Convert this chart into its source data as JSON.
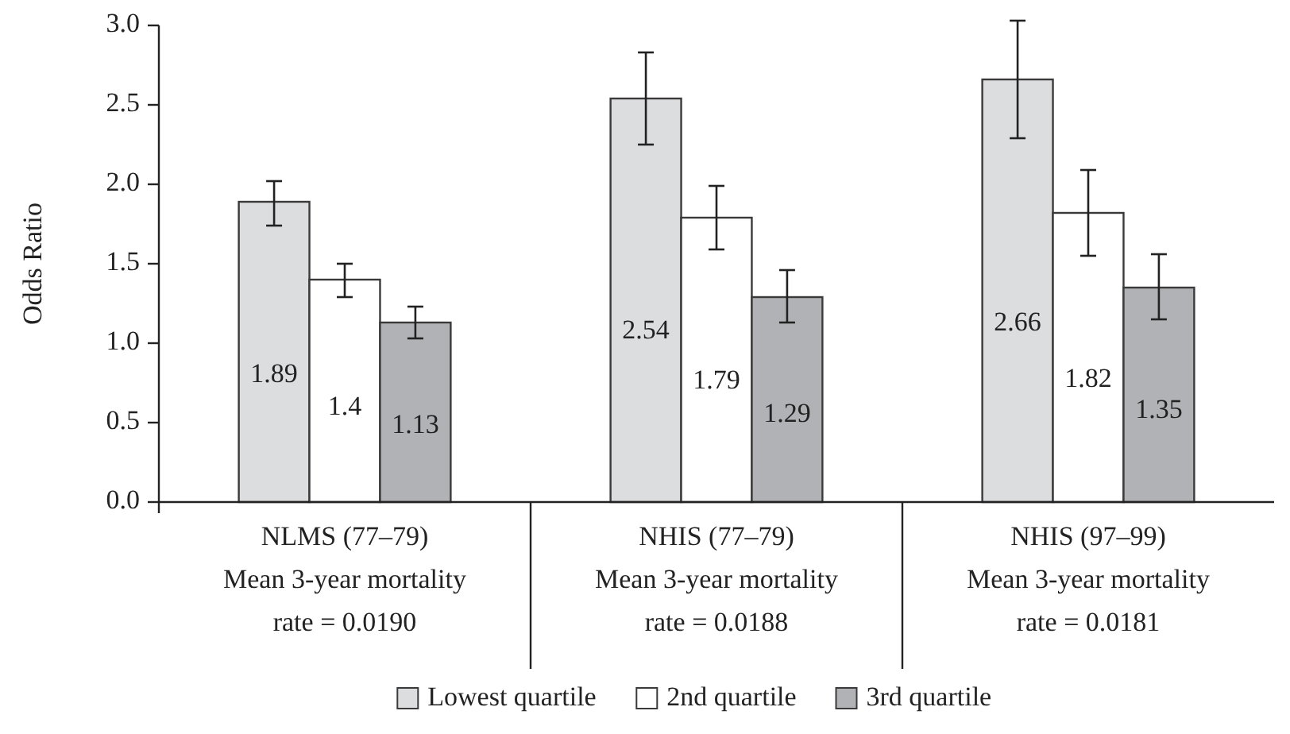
{
  "chart_data": {
    "type": "bar",
    "ylabel": "Odds Ratio",
    "categories": [
      "NLMS (77–79)\nMean 3-year mortality\nrate = 0.0190",
      "NHIS (77–79)\nMean 3-year mortality\nrate = 0.0188",
      "NHIS (97–99)\nMean 3-year mortality\nrate = 0.0181"
    ],
    "series": [
      {
        "name": "Lowest quartile",
        "color": "#dcdddf",
        "values": [
          1.89,
          2.54,
          2.66
        ],
        "errors": [
          [
            1.74,
            2.02
          ],
          [
            2.25,
            2.83
          ],
          [
            2.29,
            3.03
          ]
        ]
      },
      {
        "name": "2nd quartile",
        "color": "#ffffff",
        "values": [
          1.4,
          1.79,
          1.82
        ],
        "errors": [
          [
            1.29,
            1.5
          ],
          [
            1.59,
            1.99
          ],
          [
            1.55,
            2.09
          ]
        ]
      },
      {
        "name": "3rd quartile",
        "color": "#b1b2b5",
        "values": [
          1.13,
          1.29,
          1.35
        ],
        "errors": [
          [
            1.03,
            1.23
          ],
          [
            1.13,
            1.46
          ],
          [
            1.15,
            1.56
          ]
        ]
      }
    ],
    "ylim": [
      0,
      3
    ],
    "yticks": [
      {
        "value": 0,
        "label": "0.0"
      },
      {
        "value": 0.5,
        "label": "0.5"
      },
      {
        "value": 1,
        "label": "1.0"
      },
      {
        "value": 1.5,
        "label": "1.5"
      },
      {
        "value": 2,
        "label": "2.0"
      },
      {
        "value": 2.5,
        "label": "2.5"
      },
      {
        "value": 3,
        "label": "3.0"
      }
    ],
    "data_labels": true,
    "legend": "bottom",
    "grid": false
  }
}
